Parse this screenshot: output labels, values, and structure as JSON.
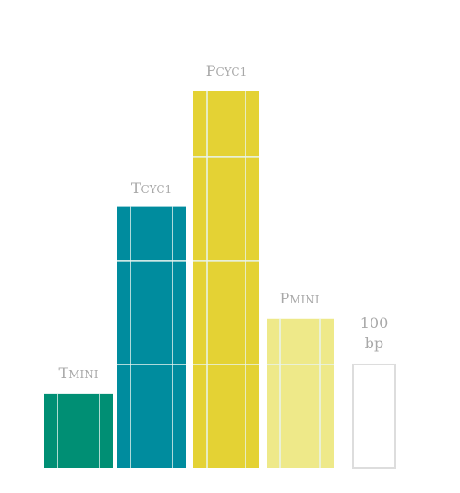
{
  "colors": {
    "tmini": "#008f74",
    "tcyc1": "#008c9e",
    "pcyc1": "#e4d234",
    "pmini": "#eee989",
    "grid_line": "#e8f4ef",
    "scale_box": "#dddddd",
    "label": "#a8a8a8"
  },
  "chart_data": {
    "type": "bar",
    "units_per_bar_segment": 100,
    "scale_bar": {
      "value": 100,
      "label_line1": "100",
      "label_line2": "bp"
    },
    "bars": [
      {
        "key": "tmini",
        "label_cap": "T",
        "label_rest": "MINI",
        "value": 72
      },
      {
        "key": "tcyc1",
        "label_cap": "T",
        "label_rest": "CYC1",
        "value": 252
      },
      {
        "key": "pcyc1",
        "label_cap": "P",
        "label_rest": "CYC1",
        "value": 363
      },
      {
        "key": "pmini",
        "label_cap": "P",
        "label_rest": "MINI",
        "value": 144
      }
    ]
  }
}
